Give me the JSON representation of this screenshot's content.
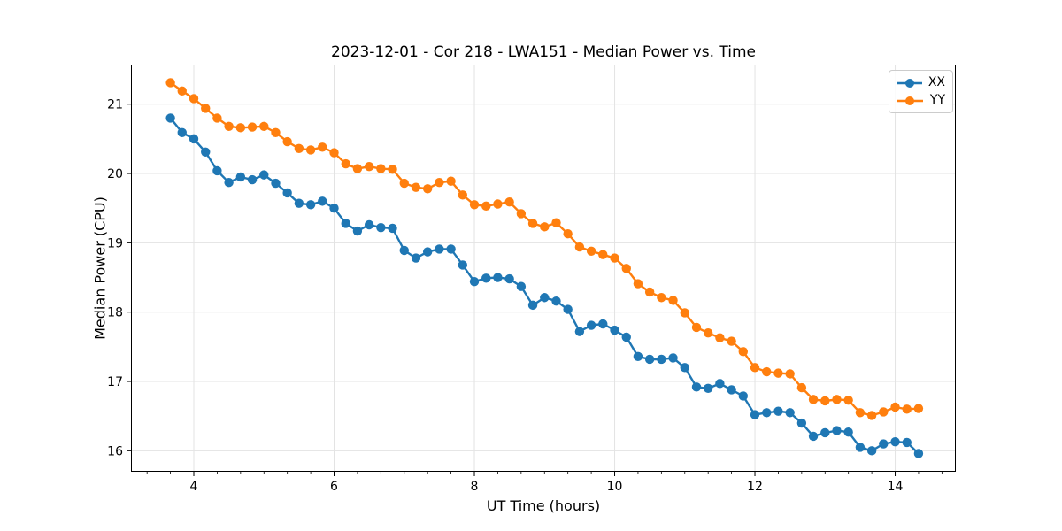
{
  "chart": {
    "title": "2023-12-01 - Cor 218 - LWA151 - Median Power vs. Time",
    "xlabel": "UT Time (hours)",
    "ylabel": "Median Power (CPU)"
  },
  "legend": {
    "position": "upper right",
    "items": [
      {
        "label": "XX",
        "color": "#1f77b4"
      },
      {
        "label": "YY",
        "color": "#ff7f0e"
      }
    ]
  },
  "chart_data": {
    "type": "line",
    "title": "2023-12-01 - Cor 218 - LWA151 - Median Power vs. Time",
    "xlabel": "UT Time (hours)",
    "ylabel": "Median Power (CPU)",
    "xlim": [
      3.104,
      14.864
    ],
    "ylim": [
      15.698,
      21.571
    ],
    "xticks": [
      4,
      6,
      8,
      10,
      12,
      14
    ],
    "yticks": [
      16,
      17,
      18,
      19,
      20,
      21
    ],
    "minor_xticks_per_major": 5,
    "grid": true,
    "legend_position": "upper right",
    "marker": "o",
    "x": [
      3.667,
      3.833,
      4.0,
      4.167,
      4.333,
      4.5,
      4.667,
      4.833,
      5.0,
      5.167,
      5.333,
      5.5,
      5.667,
      5.833,
      6.0,
      6.167,
      6.333,
      6.5,
      6.667,
      6.833,
      7.0,
      7.167,
      7.333,
      7.5,
      7.667,
      7.833,
      8.0,
      8.167,
      8.333,
      8.5,
      8.667,
      8.833,
      9.0,
      9.167,
      9.333,
      9.5,
      9.667,
      9.833,
      10.0,
      10.167,
      10.333,
      10.5,
      10.667,
      10.833,
      11.0,
      11.167,
      11.333,
      11.5,
      11.667,
      11.833,
      12.0,
      12.167,
      12.333,
      12.5,
      12.667,
      12.833,
      13.0,
      13.167,
      13.333,
      13.5,
      13.667,
      13.833,
      14.0,
      14.167,
      14.333
    ],
    "series": [
      {
        "name": "XX",
        "color": "#1f77b4",
        "values": [
          20.8,
          20.59,
          20.5,
          20.31,
          20.04,
          19.87,
          19.95,
          19.91,
          19.98,
          19.86,
          19.72,
          19.57,
          19.55,
          19.6,
          19.5,
          19.28,
          19.17,
          19.26,
          19.22,
          19.21,
          18.89,
          18.78,
          18.87,
          18.91,
          18.91,
          18.68,
          18.44,
          18.49,
          18.5,
          18.48,
          18.37,
          18.1,
          18.21,
          18.16,
          18.04,
          17.72,
          17.81,
          17.83,
          17.74,
          17.64,
          17.36,
          17.32,
          17.32,
          17.34,
          17.2,
          16.92,
          16.9,
          16.97,
          16.88,
          16.79,
          16.52,
          16.55,
          16.57,
          16.55,
          16.4,
          16.21,
          16.26,
          16.29,
          16.27,
          16.05,
          16.0,
          16.1,
          16.13,
          16.12,
          15.96
        ]
      },
      {
        "name": "YY",
        "color": "#ff7f0e",
        "values": [
          21.31,
          21.19,
          21.08,
          20.94,
          20.8,
          20.68,
          20.66,
          20.67,
          20.68,
          20.59,
          20.46,
          20.36,
          20.34,
          20.38,
          20.3,
          20.14,
          20.07,
          20.1,
          20.07,
          20.06,
          19.86,
          19.8,
          19.78,
          19.87,
          19.89,
          19.69,
          19.55,
          19.53,
          19.56,
          19.59,
          19.42,
          19.28,
          19.23,
          19.29,
          19.13,
          18.94,
          18.88,
          18.83,
          18.78,
          18.63,
          18.41,
          18.29,
          18.21,
          18.17,
          17.99,
          17.78,
          17.7,
          17.63,
          17.58,
          17.43,
          17.2,
          17.14,
          17.12,
          17.11,
          16.91,
          16.74,
          16.72,
          16.74,
          16.73,
          16.55,
          16.51,
          16.56,
          16.63,
          16.6,
          16.61
        ]
      }
    ]
  }
}
